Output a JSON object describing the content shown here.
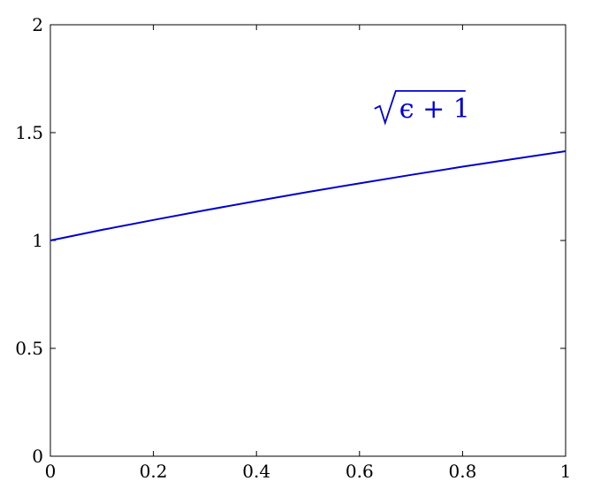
{
  "chart_data": {
    "type": "line",
    "title": "",
    "xlabel": "",
    "ylabel": "",
    "xlim": [
      0,
      1
    ],
    "ylim": [
      0,
      2
    ],
    "grid": false,
    "x_ticks": [
      {
        "value": 0,
        "label": "0"
      },
      {
        "value": 0.2,
        "label": "0.2"
      },
      {
        "value": 0.4,
        "label": "0.4"
      },
      {
        "value": 0.6,
        "label": "0.6"
      },
      {
        "value": 0.8,
        "label": "0.8"
      },
      {
        "value": 1,
        "label": "1"
      }
    ],
    "y_ticks": [
      {
        "value": 0,
        "label": "0"
      },
      {
        "value": 0.5,
        "label": "0.5"
      },
      {
        "value": 1,
        "label": "1"
      },
      {
        "value": 1.5,
        "label": "1.5"
      },
      {
        "value": 2,
        "label": "2"
      }
    ],
    "series": [
      {
        "color": "#0000cc",
        "x": [
          0,
          0.1,
          0.2,
          0.3,
          0.4,
          0.5,
          0.6,
          0.7,
          0.8,
          0.9,
          1
        ],
        "y": [
          1,
          1.049,
          1.095,
          1.14,
          1.183,
          1.225,
          1.265,
          1.304,
          1.342,
          1.378,
          1.414
        ]
      }
    ],
    "annotations": [
      {
        "text": "ϵ + 1",
        "math": "√(ϵ + 1)",
        "x": 0.72,
        "y": 1.57,
        "color": "#0000cc"
      }
    ]
  }
}
